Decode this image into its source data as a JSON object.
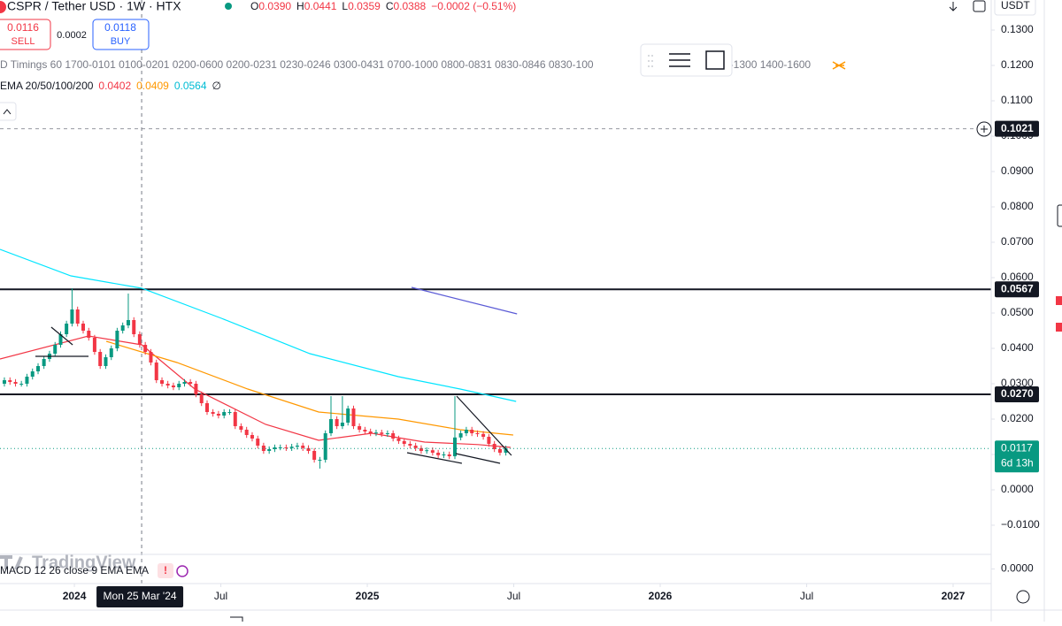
{
  "header": {
    "symbol": "CSPR / Tether USD · 1W · HTX",
    "ohlc": [
      {
        "label": "O",
        "value": "0.0390"
      },
      {
        "label": "H",
        "value": "0.0441"
      },
      {
        "label": "L",
        "value": "0.0359"
      },
      {
        "label": "C",
        "value": "0.0388"
      }
    ],
    "change": "−0.0002 (−0.51%)"
  },
  "trade": {
    "sell_price": "0.0116",
    "sell": "SELL",
    "spread": "0.0002",
    "buy_price": "0.0118",
    "buy": "BUY"
  },
  "currency": "USDT",
  "indicators": {
    "sessions_left": "D Timings 60 1700-0101 0100-0201 0200-0600 0200-0231 0230-0246 0300-0431 0700-1000 0800-0831 0830-0846 0830-100",
    "sessions_right": "0-1300 1400-1600",
    "ema_label": "EMA 20/50/100/200",
    "ema_values": [
      {
        "text": "0.0402",
        "color": "#f23645"
      },
      {
        "text": "0.0409",
        "color": "#ff9800"
      },
      {
        "text": "0.0564",
        "color": "#00bcd4"
      }
    ],
    "ema_empty": "∅"
  },
  "branding": "TradingView",
  "macd_label": "MACD 12 26 close 9 EMA EMA",
  "macd_pane": {
    "ylim": [
      -0.0008,
      0.0008
    ],
    "yticks": [
      {
        "value": 0,
        "label": "0.0000"
      }
    ]
  },
  "chart_data": {
    "type": "candlestick",
    "up_color": "#089981",
    "down_color": "#f23645",
    "grid": false,
    "x": [
      2023.761,
      2023.78,
      2023.799,
      2023.819,
      2023.838,
      2023.857,
      2023.876,
      2023.896,
      2023.915,
      2023.934,
      2023.953,
      2023.973,
      2023.992,
      2024.011,
      2024.03,
      2024.049,
      2024.069,
      2024.088,
      2024.107,
      2024.126,
      2024.146,
      2024.165,
      2024.184,
      2024.203,
      2024.223,
      2024.242,
      2024.261,
      2024.28,
      2024.299,
      2024.319,
      2024.338,
      2024.357,
      2024.376,
      2024.396,
      2024.415,
      2024.434,
      2024.453,
      2024.473,
      2024.492,
      2024.511,
      2024.53,
      2024.549,
      2024.569,
      2024.588,
      2024.607,
      2024.626,
      2024.646,
      2024.665,
      2024.684,
      2024.703,
      2024.723,
      2024.742,
      2024.761,
      2024.78,
      2024.799,
      2024.819,
      2024.838,
      2024.857,
      2024.876,
      2024.896,
      2024.915,
      2024.934,
      2024.953,
      2024.973,
      2024.992,
      2025.011,
      2025.03,
      2025.049,
      2025.069,
      2025.088,
      2025.107,
      2025.126,
      2025.146,
      2025.165,
      2025.184,
      2025.203,
      2025.223,
      2025.242,
      2025.261,
      2025.28,
      2025.299,
      2025.319,
      2025.338,
      2025.357,
      2025.376,
      2025.396,
      2025.415,
      2025.434,
      2025.453,
      2025.473
    ],
    "open": [
      0.03,
      0.031,
      0.0305,
      0.03,
      0.03,
      0.032,
      0.0335,
      0.035,
      0.037,
      0.0385,
      0.041,
      0.044,
      0.047,
      0.051,
      0.047,
      0.045,
      0.043,
      0.039,
      0.035,
      0.0375,
      0.04,
      0.045,
      0.0465,
      0.048,
      0.044,
      0.041,
      0.039,
      0.036,
      0.031,
      0.03,
      0.0295,
      0.029,
      0.03,
      0.0305,
      0.03,
      0.027,
      0.0245,
      0.022,
      0.0215,
      0.021,
      0.022,
      0.022,
      0.018,
      0.017,
      0.0155,
      0.0145,
      0.0125,
      0.011,
      0.0115,
      0.012,
      0.012,
      0.0118,
      0.0122,
      0.0125,
      0.0118,
      0.011,
      0.0085,
      0.0085,
      0.016,
      0.02,
      0.018,
      0.019,
      0.023,
      0.018,
      0.017,
      0.0165,
      0.016,
      0.0162,
      0.0158,
      0.016,
      0.0145,
      0.0138,
      0.013,
      0.0125,
      0.0118,
      0.011,
      0.0112,
      0.0105,
      0.0098,
      0.01,
      0.0095,
      0.0148,
      0.016,
      0.017,
      0.016,
      0.0158,
      0.015,
      0.013,
      0.0115,
      0.0105
    ],
    "high": [
      0.0318,
      0.0318,
      0.0313,
      0.0308,
      0.0328,
      0.0343,
      0.0358,
      0.0378,
      0.0393,
      0.0418,
      0.0448,
      0.0478,
      0.057,
      0.0518,
      0.0478,
      0.0458,
      0.0438,
      0.0398,
      0.0383,
      0.0408,
      0.0458,
      0.0473,
      0.0555,
      0.0488,
      0.0448,
      0.0418,
      0.0398,
      0.0368,
      0.0318,
      0.0308,
      0.0303,
      0.0308,
      0.0313,
      0.0313,
      0.0308,
      0.0278,
      0.0253,
      0.0228,
      0.0223,
      0.0228,
      0.0228,
      0.0228,
      0.0188,
      0.0178,
      0.0163,
      0.0153,
      0.0133,
      0.0123,
      0.0128,
      0.0128,
      0.0128,
      0.013,
      0.0133,
      0.0133,
      0.0126,
      0.0118,
      0.0093,
      0.0168,
      0.0265,
      0.0208,
      0.0265,
      0.0238,
      0.0238,
      0.0188,
      0.0178,
      0.0173,
      0.017,
      0.017,
      0.0168,
      0.0168,
      0.0153,
      0.0146,
      0.0138,
      0.0133,
      0.0126,
      0.012,
      0.012,
      0.0113,
      0.0108,
      0.0108,
      0.0265,
      0.0168,
      0.0178,
      0.0178,
      0.0168,
      0.0166,
      0.0158,
      0.0138,
      0.0123,
      0.0125
    ],
    "low": [
      0.0292,
      0.0297,
      0.0292,
      0.0292,
      0.0292,
      0.0312,
      0.0327,
      0.0342,
      0.0362,
      0.0377,
      0.0402,
      0.0432,
      0.0462,
      0.0462,
      0.0442,
      0.0422,
      0.0382,
      0.0342,
      0.0342,
      0.0367,
      0.0392,
      0.0442,
      0.0457,
      0.0432,
      0.0402,
      0.0382,
      0.0352,
      0.0302,
      0.0292,
      0.0287,
      0.0282,
      0.0282,
      0.0292,
      0.0292,
      0.0262,
      0.0237,
      0.0212,
      0.0207,
      0.0202,
      0.0202,
      0.0212,
      0.0172,
      0.0162,
      0.0147,
      0.0137,
      0.0117,
      0.0102,
      0.0102,
      0.0107,
      0.0112,
      0.011,
      0.011,
      0.0114,
      0.011,
      0.0102,
      0.0077,
      0.006,
      0.0077,
      0.0152,
      0.0172,
      0.0172,
      0.0182,
      0.0172,
      0.0162,
      0.0157,
      0.0152,
      0.0152,
      0.015,
      0.015,
      0.0137,
      0.013,
      0.0122,
      0.0117,
      0.011,
      0.0102,
      0.0102,
      0.0097,
      0.009,
      0.009,
      0.0087,
      0.0087,
      0.014,
      0.0152,
      0.0152,
      0.015,
      0.0142,
      0.0122,
      0.0107,
      0.0097,
      0.0097
    ],
    "close": [
      0.031,
      0.0305,
      0.03,
      0.03,
      0.032,
      0.0335,
      0.035,
      0.037,
      0.0385,
      0.041,
      0.044,
      0.047,
      0.051,
      0.047,
      0.045,
      0.043,
      0.039,
      0.035,
      0.0375,
      0.04,
      0.045,
      0.0465,
      0.048,
      0.044,
      0.041,
      0.039,
      0.036,
      0.031,
      0.03,
      0.0295,
      0.029,
      0.03,
      0.0305,
      0.03,
      0.027,
      0.0245,
      0.022,
      0.0215,
      0.021,
      0.022,
      0.022,
      0.018,
      0.017,
      0.0155,
      0.0145,
      0.0125,
      0.011,
      0.0115,
      0.012,
      0.012,
      0.0118,
      0.0122,
      0.0125,
      0.0118,
      0.011,
      0.0085,
      0.0085,
      0.016,
      0.02,
      0.018,
      0.019,
      0.023,
      0.018,
      0.017,
      0.0165,
      0.016,
      0.0162,
      0.0158,
      0.016,
      0.0145,
      0.0138,
      0.013,
      0.0125,
      0.0118,
      0.011,
      0.0112,
      0.0105,
      0.0098,
      0.01,
      0.0095,
      0.0148,
      0.016,
      0.017,
      0.016,
      0.0158,
      0.015,
      0.013,
      0.0115,
      0.0105,
      0.0117
    ],
    "xlim": [
      2023.746,
      2027.13
    ],
    "xticks": [
      {
        "value": 2024,
        "label": "2024"
      },
      {
        "value": 2024.5,
        "label": "Jul"
      },
      {
        "value": 2025,
        "label": "2025"
      },
      {
        "value": 2025.5,
        "label": "Jul"
      },
      {
        "value": 2026,
        "label": "2026"
      },
      {
        "value": 2026.5,
        "label": "Jul"
      },
      {
        "value": 2027,
        "label": "2027"
      }
    ],
    "ylim": [
      -0.01825,
      0.1385
    ],
    "yticks": [
      {
        "value": 0.13,
        "label": "0.1300"
      },
      {
        "value": 0.12,
        "label": "0.1200"
      },
      {
        "value": 0.11,
        "label": "0.1100"
      },
      {
        "value": 0.1,
        "label": "0.1000"
      },
      {
        "value": 0.09,
        "label": "0.0900"
      },
      {
        "value": 0.08,
        "label": "0.0800"
      },
      {
        "value": 0.07,
        "label": "0.0700"
      },
      {
        "value": 0.06,
        "label": "0.0600"
      },
      {
        "value": 0.05,
        "label": "0.0500"
      },
      {
        "value": 0.04,
        "label": "0.0400"
      },
      {
        "value": 0.03,
        "label": "0.0300"
      },
      {
        "value": 0.02,
        "label": "0.0200"
      },
      {
        "value": 0.01,
        "label": "0.0100"
      },
      {
        "value": 0,
        "label": "0.0000"
      },
      {
        "value": -0.01,
        "label": "−0.0100"
      }
    ],
    "overlays": [
      {
        "color": "#f23645",
        "x": [
          2023.746,
          2024.048,
          2024.23,
          2024.411,
          2024.653,
          2024.834,
          2025.015,
          2025.196,
          2025.378,
          2025.489
        ],
        "values": [
          0.037,
          0.0435,
          0.041,
          0.0285,
          0.0185,
          0.014,
          0.016,
          0.0135,
          0.0128,
          0.012
        ]
      },
      {
        "color": "#ff9800",
        "x": [
          2024.109,
          2024.35,
          2024.592,
          2024.834,
          2025.106,
          2025.317,
          2025.498
        ],
        "values": [
          0.042,
          0.036,
          0.0285,
          0.022,
          0.02,
          0.017,
          0.0155
        ]
      },
      {
        "color": "#00e5ff",
        "x": [
          2023.746,
          2023.988,
          2024.23,
          2024.502,
          2024.804,
          2025.106,
          2025.317,
          2025.508
        ],
        "values": [
          0.068,
          0.0605,
          0.057,
          0.0485,
          0.0385,
          0.032,
          0.0285,
          0.025
        ]
      }
    ],
    "trendlines": [
      {
        "color": "#5b5bd6",
        "x": [
          2025.151,
          2025.511
        ],
        "values": [
          0.05725,
          0.04975
        ]
      },
      {
        "color": "#131722",
        "x": [
          2025.305,
          2025.492
        ],
        "values": [
          0.0265,
          0.00975
        ]
      },
      {
        "color": "#131722",
        "x": [
          2025.136,
          2025.323
        ],
        "values": [
          0.0105,
          0.0075
        ]
      },
      {
        "color": "#131722",
        "x": [
          2025.302,
          2025.453
        ],
        "values": [
          0.01025,
          0.0075
        ]
      },
      {
        "color": "#131722",
        "x": [
          2023.921,
          2023.994
        ],
        "values": [
          0.046,
          0.041
        ]
      },
      {
        "color": "#131722",
        "x": [
          2023.867,
          2024.048
        ],
        "values": [
          0.03775,
          0.03775
        ]
      }
    ],
    "price_lines": [
      {
        "value": 0.1021,
        "label": "0.1021",
        "style": "dashed"
      },
      {
        "value": 0.0567,
        "label": "0.0567",
        "style": "solid"
      },
      {
        "value": 0.027,
        "label": "0.0270",
        "style": "solid"
      }
    ],
    "last_price": {
      "value": 0.0117,
      "label": "0.0117",
      "countdown": "6d 13h",
      "color": "#089981"
    },
    "crosshair": {
      "x": 2024.2296,
      "label": "Mon 25 Mar '24"
    }
  }
}
